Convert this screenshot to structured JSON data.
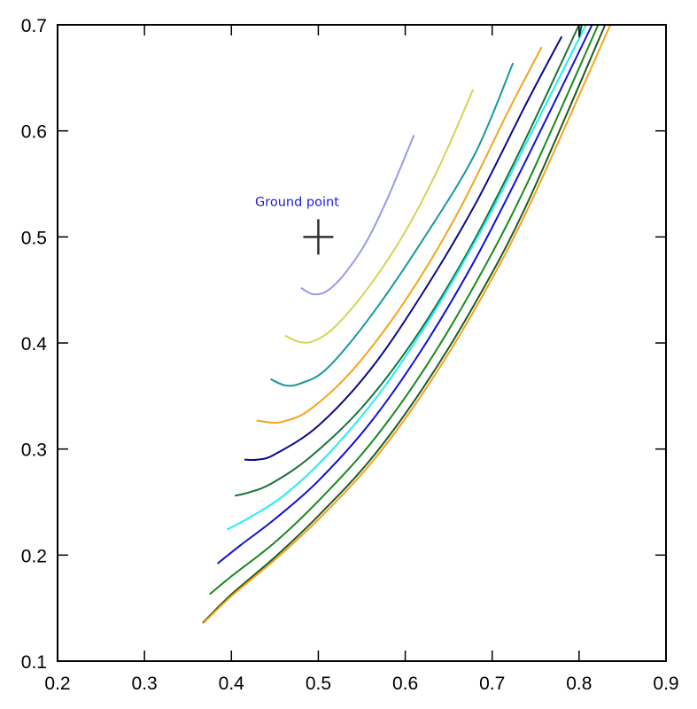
{
  "chart_data": {
    "type": "line",
    "title": "",
    "xlabel": "",
    "ylabel": "",
    "xlim": [
      0.2,
      0.9
    ],
    "ylim": [
      0.1,
      0.7
    ],
    "xticks": [
      "0.2",
      "0.3",
      "0.4",
      "0.5",
      "0.6",
      "0.7",
      "0.8",
      "0.9"
    ],
    "yticks": [
      "0.1",
      "0.2",
      "0.3",
      "0.4",
      "0.5",
      "0.6",
      "0.7"
    ],
    "grid": false,
    "annotation": {
      "text": "Ground point",
      "x": 0.5,
      "y": 0.5,
      "marker": "plus"
    },
    "series": [
      {
        "color": "#9999ee",
        "points": [
          [
            0.48,
            0.452
          ],
          [
            0.494,
            0.446
          ],
          [
            0.51,
            0.449
          ],
          [
            0.53,
            0.465
          ],
          [
            0.555,
            0.495
          ],
          [
            0.58,
            0.537
          ],
          [
            0.61,
            0.596
          ]
        ]
      },
      {
        "color": "#d4d455",
        "points": [
          [
            0.462,
            0.407
          ],
          [
            0.478,
            0.401
          ],
          [
            0.495,
            0.402
          ],
          [
            0.52,
            0.416
          ],
          [
            0.56,
            0.455
          ],
          [
            0.6,
            0.505
          ],
          [
            0.64,
            0.568
          ],
          [
            0.678,
            0.639
          ]
        ]
      },
      {
        "color": "#1a9999",
        "points": [
          [
            0.445,
            0.366
          ],
          [
            0.462,
            0.36
          ],
          [
            0.48,
            0.362
          ],
          [
            0.51,
            0.376
          ],
          [
            0.56,
            0.425
          ],
          [
            0.62,
            0.497
          ],
          [
            0.68,
            0.578
          ],
          [
            0.724,
            0.664
          ]
        ]
      },
      {
        "color": "#f7a31c",
        "points": [
          [
            0.429,
            0.327
          ],
          [
            0.445,
            0.325
          ],
          [
            0.46,
            0.326
          ],
          [
            0.49,
            0.337
          ],
          [
            0.54,
            0.375
          ],
          [
            0.6,
            0.44
          ],
          [
            0.66,
            0.522
          ],
          [
            0.72,
            0.621
          ],
          [
            0.757,
            0.679
          ]
        ]
      },
      {
        "color": "#0a0a8a",
        "points": [
          [
            0.415,
            0.29
          ],
          [
            0.43,
            0.29
          ],
          [
            0.45,
            0.295
          ],
          [
            0.5,
            0.322
          ],
          [
            0.56,
            0.375
          ],
          [
            0.62,
            0.447
          ],
          [
            0.68,
            0.53
          ],
          [
            0.74,
            0.627
          ],
          [
            0.78,
            0.689
          ]
        ]
      },
      {
        "color": "#1a7040",
        "points": [
          [
            0.404,
            0.256
          ],
          [
            0.42,
            0.259
          ],
          [
            0.445,
            0.267
          ],
          [
            0.49,
            0.292
          ],
          [
            0.55,
            0.339
          ],
          [
            0.61,
            0.403
          ],
          [
            0.67,
            0.483
          ],
          [
            0.73,
            0.578
          ],
          [
            0.8,
            0.7
          ]
        ]
      },
      {
        "color": "#22eeee",
        "points": [
          [
            0.395,
            0.224
          ],
          [
            0.42,
            0.235
          ],
          [
            0.46,
            0.256
          ],
          [
            0.51,
            0.294
          ],
          [
            0.57,
            0.352
          ],
          [
            0.63,
            0.425
          ],
          [
            0.69,
            0.51
          ],
          [
            0.75,
            0.606
          ],
          [
            0.808,
            0.7
          ]
        ]
      },
      {
        "color": "#1010d8",
        "points": [
          [
            0.384,
            0.192
          ],
          [
            0.41,
            0.209
          ],
          [
            0.45,
            0.234
          ],
          [
            0.5,
            0.27
          ],
          [
            0.56,
            0.325
          ],
          [
            0.62,
            0.395
          ],
          [
            0.68,
            0.478
          ],
          [
            0.74,
            0.574
          ],
          [
            0.815,
            0.7
          ]
        ]
      },
      {
        "color": "#1a8a1a",
        "points": [
          [
            0.375,
            0.163
          ],
          [
            0.4,
            0.18
          ],
          [
            0.45,
            0.212
          ],
          [
            0.5,
            0.251
          ],
          [
            0.56,
            0.305
          ],
          [
            0.62,
            0.373
          ],
          [
            0.68,
            0.455
          ],
          [
            0.74,
            0.55
          ],
          [
            0.822,
            0.7
          ]
        ]
      },
      {
        "color": "#1f5a1f",
        "points": [
          [
            0.367,
            0.136
          ],
          [
            0.4,
            0.163
          ],
          [
            0.45,
            0.198
          ],
          [
            0.5,
            0.237
          ],
          [
            0.56,
            0.29
          ],
          [
            0.62,
            0.357
          ],
          [
            0.68,
            0.437
          ],
          [
            0.74,
            0.531
          ],
          [
            0.83,
            0.7
          ]
        ]
      },
      {
        "color": "#f7a31c",
        "points": [
          [
            0.368,
            0.136
          ],
          [
            0.401,
            0.162
          ],
          [
            0.452,
            0.197
          ],
          [
            0.503,
            0.236
          ],
          [
            0.563,
            0.289
          ],
          [
            0.623,
            0.356
          ],
          [
            0.683,
            0.436
          ],
          [
            0.743,
            0.53
          ],
          [
            0.836,
            0.7
          ]
        ]
      },
      {
        "color": "#1f4030",
        "points": [
          [
            0.8,
            0.688
          ],
          [
            0.803,
            0.7
          ]
        ]
      }
    ]
  }
}
